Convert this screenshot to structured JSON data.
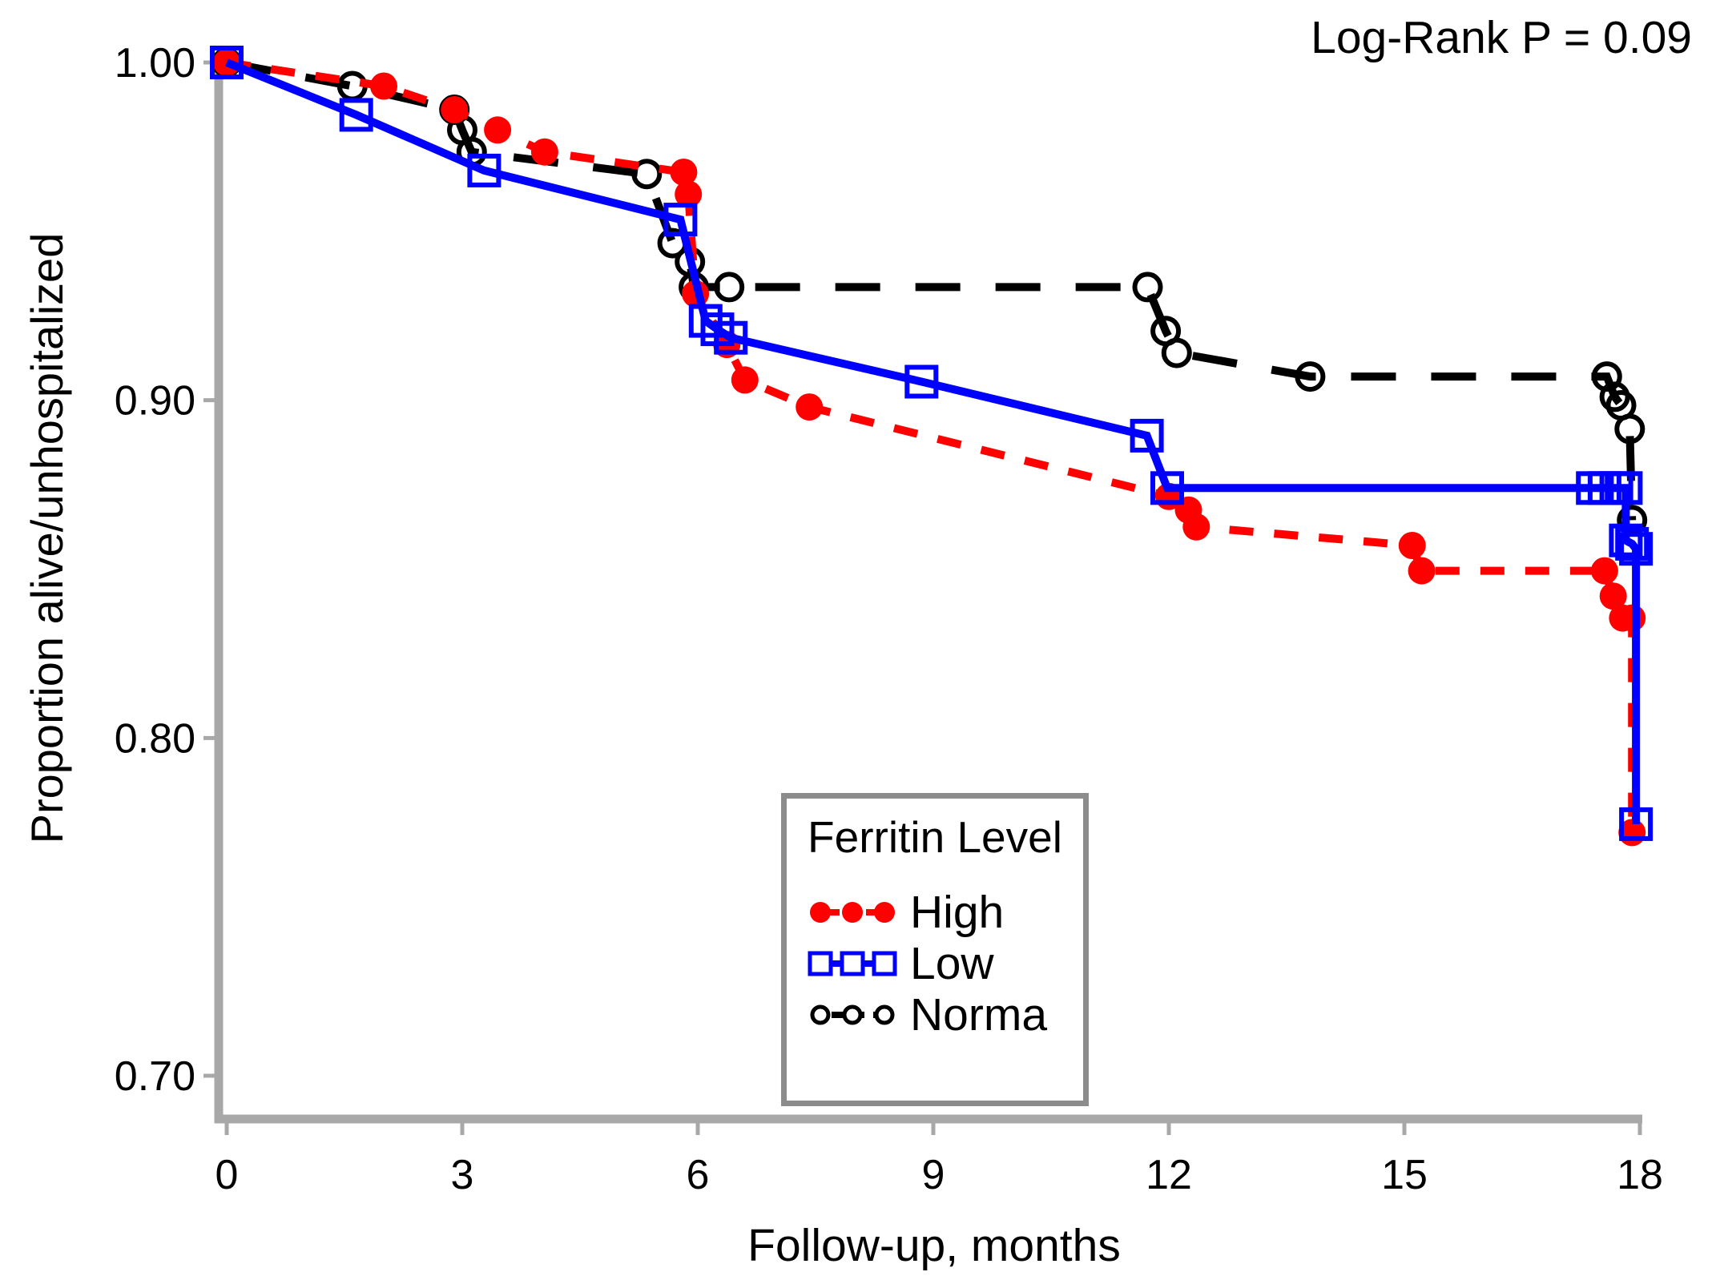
{
  "chart_data": {
    "type": "line",
    "subtype": "kaplan-meier-survival",
    "title": "",
    "annotation": "Log-Rank P = 0.09",
    "xlabel": "Follow-up, months",
    "ylabel": "Proportion alive/unhospitalized",
    "legend_title": "Ferritin Level",
    "legend_position": "inside-bottom-center",
    "grid": false,
    "xlim": [
      0,
      18
    ],
    "ylim": [
      0.7,
      1.0
    ],
    "x_ticks": [
      0,
      3,
      6,
      9,
      12,
      15,
      18
    ],
    "x_tick_labels": [
      "0",
      "3",
      "6",
      "9",
      "12",
      "15",
      "18"
    ],
    "y_ticks": [
      1.0,
      0.9,
      0.8,
      0.7
    ],
    "y_tick_labels": [
      "1.00",
      "0.90",
      "0.80",
      "0.70"
    ],
    "axis_color": "#a8a8a8",
    "legend_border_color": "#8c8c8c",
    "series": [
      {
        "name": "High",
        "color": "#ff0000",
        "line": "dashed",
        "marker": "filled-circle",
        "z": 2,
        "points": [
          [
            0,
            1.0
          ],
          [
            2.0,
            0.993
          ],
          [
            2.9,
            0.986
          ],
          [
            3.45,
            0.98
          ],
          [
            4.05,
            0.9735
          ],
          [
            5.82,
            0.9675
          ],
          [
            5.88,
            0.961
          ],
          [
            5.97,
            0.9315
          ],
          [
            6.37,
            0.9165
          ],
          [
            6.6,
            0.906
          ],
          [
            7.42,
            0.898
          ],
          [
            12.0,
            0.8715
          ],
          [
            12.25,
            0.8675
          ],
          [
            12.35,
            0.8625
          ],
          [
            15.1,
            0.857
          ],
          [
            15.22,
            0.8495
          ],
          [
            17.55,
            0.8495
          ],
          [
            17.66,
            0.842
          ],
          [
            17.78,
            0.8355
          ],
          [
            17.9,
            0.8355
          ],
          [
            17.9,
            0.772
          ]
        ]
      },
      {
        "name": "Low",
        "color": "#0000ff",
        "line": "solid",
        "marker": "open-square",
        "z": 3,
        "points": [
          [
            0,
            1.0
          ],
          [
            1.65,
            0.9845
          ],
          [
            3.28,
            0.968
          ],
          [
            5.78,
            0.9535
          ],
          [
            6.1,
            0.9235
          ],
          [
            6.25,
            0.921
          ],
          [
            6.42,
            0.9185
          ],
          [
            8.85,
            0.9055
          ],
          [
            11.72,
            0.8895
          ],
          [
            11.98,
            0.874
          ],
          [
            17.4,
            0.874
          ],
          [
            17.55,
            0.874
          ],
          [
            17.7,
            0.874
          ],
          [
            17.82,
            0.874
          ],
          [
            17.82,
            0.8585
          ],
          [
            17.9,
            0.8575
          ],
          [
            17.95,
            0.856
          ],
          [
            17.95,
            0.7745
          ]
        ]
      },
      {
        "name": "Norma",
        "color": "#000000",
        "line": "long-dashed",
        "marker": "open-circle",
        "z": 1,
        "points": [
          [
            0,
            1.0
          ],
          [
            1.6,
            0.993
          ],
          [
            2.9,
            0.986
          ],
          [
            3.0,
            0.98
          ],
          [
            3.12,
            0.9735
          ],
          [
            5.35,
            0.967
          ],
          [
            5.68,
            0.9465
          ],
          [
            5.9,
            0.941
          ],
          [
            5.95,
            0.9335
          ],
          [
            6.4,
            0.9335
          ],
          [
            11.73,
            0.9335
          ],
          [
            11.96,
            0.9205
          ],
          [
            12.1,
            0.914
          ],
          [
            13.8,
            0.907
          ],
          [
            17.58,
            0.907
          ],
          [
            17.68,
            0.901
          ],
          [
            17.76,
            0.8985
          ],
          [
            17.87,
            0.8915
          ],
          [
            17.9,
            0.8645
          ]
        ]
      }
    ]
  }
}
